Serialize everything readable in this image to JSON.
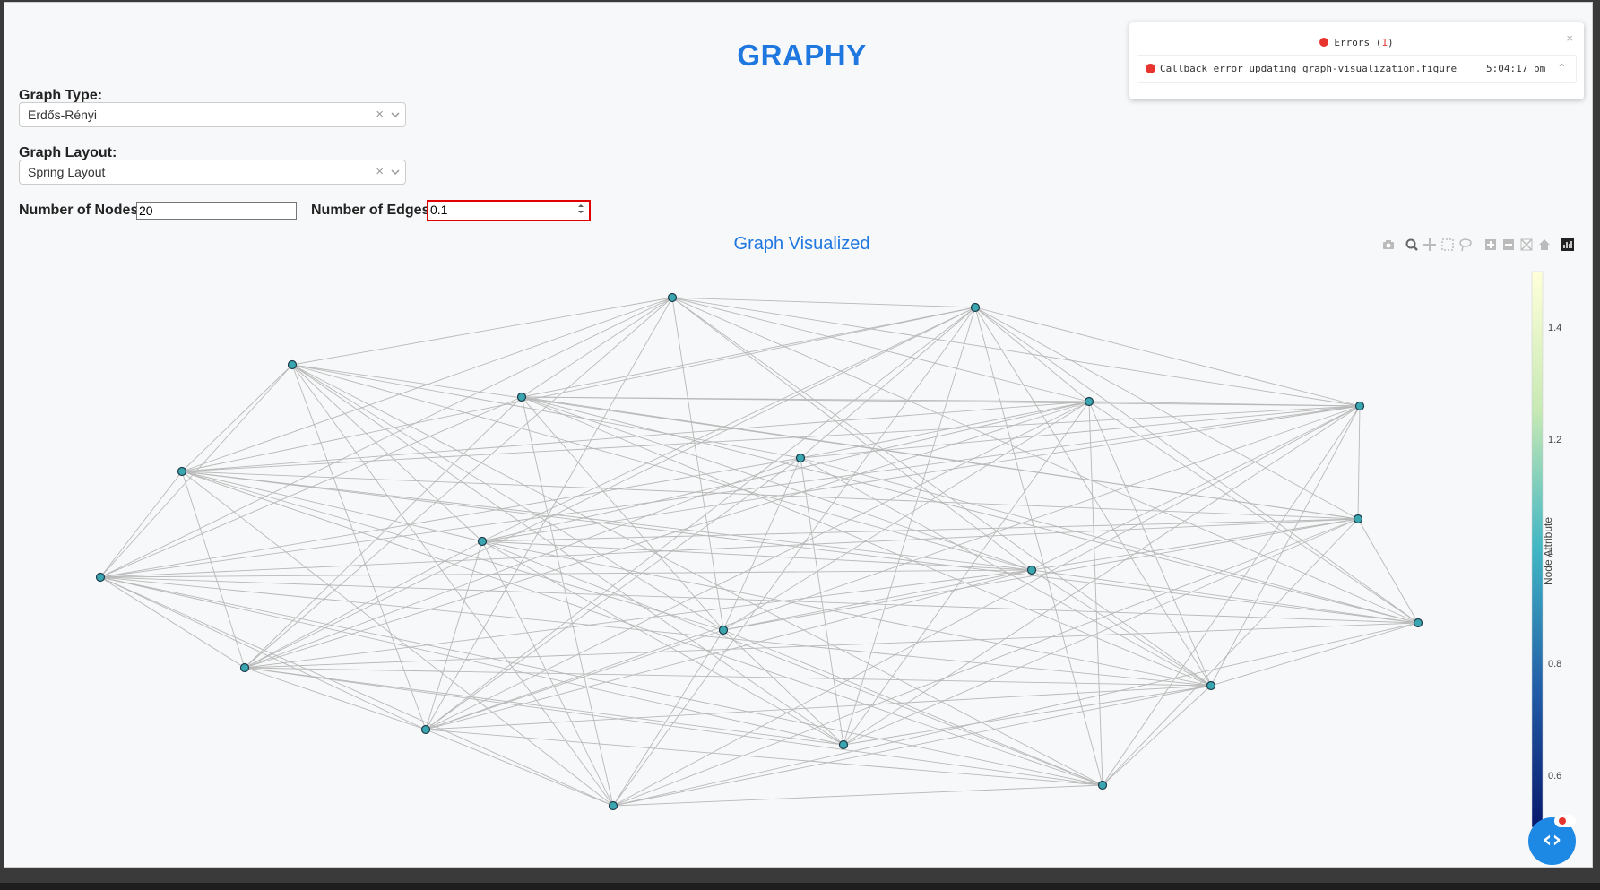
{
  "app": {
    "title": "GRAPHY"
  },
  "controls": {
    "graph_type": {
      "label": "Graph Type:",
      "value": "Erdős-Rényi",
      "clear": "×"
    },
    "graph_layout": {
      "label": "Graph Layout:",
      "value": "Spring Layout",
      "clear": "×"
    },
    "num_nodes": {
      "label": "Number of Nodes:",
      "value": "20"
    },
    "num_edges": {
      "label": "Number of Edges",
      "value": "0.1"
    }
  },
  "graph": {
    "title": "Graph Visualized",
    "colorbar": {
      "label": "Node Attribute",
      "ticks": [
        "1.4",
        "1.2",
        "1",
        "0.8",
        "0.6"
      ],
      "colors": [
        "#08186c",
        "#225ea8",
        "#41b6c4",
        "#c7e9b4",
        "#ffffd9"
      ]
    },
    "node_color": "#3aa6b0",
    "edge_color": "#b8b8b8"
  },
  "modebar": {
    "icons": [
      "camera-icon",
      "zoom-icon",
      "pan-icon",
      "box-select-icon",
      "lasso-icon",
      "zoom-in-icon",
      "zoom-out-icon",
      "autoscale-icon",
      "reset-axes-icon",
      "plotly-logo-icon"
    ]
  },
  "errors": {
    "title": "Errors (",
    "count": "1",
    "title_end": ")",
    "close": "×",
    "items": [
      {
        "message": "Callback error updating graph-visualization.figure",
        "time": "5:04:17 pm"
      }
    ]
  },
  "colors": {
    "accent": "#1f77e0",
    "error": "#e8342f",
    "highlight_border": "#e00000"
  }
}
